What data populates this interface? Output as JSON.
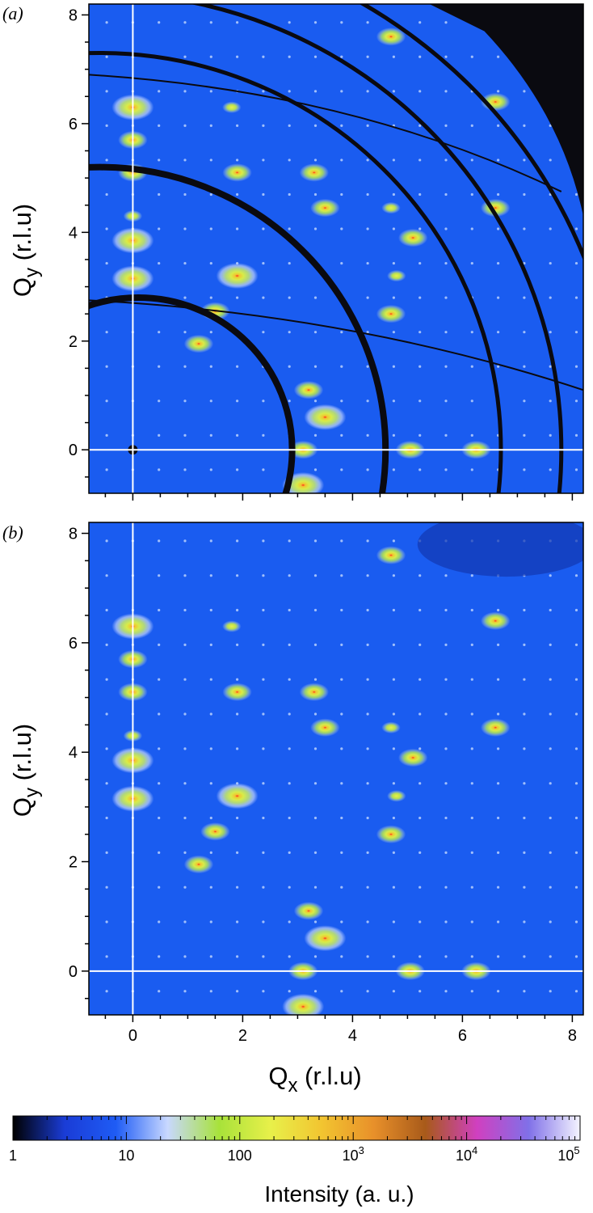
{
  "chart_data": [
    {
      "type": "heatmap",
      "panel_label": "(a)",
      "xlabel": "",
      "ylabel_main": "Q",
      "ylabel_sub": "y",
      "ylabel_unit": " (r.l.u)",
      "xlim": [
        -0.8,
        8.2
      ],
      "ylim": [
        -0.8,
        8.2
      ],
      "x_ticks": [
        0,
        2,
        4,
        6,
        8
      ],
      "y_ticks": [
        0,
        2,
        4,
        6,
        8
      ],
      "x_tick_labels": [
        "",
        "",
        "",
        "",
        ""
      ],
      "y_tick_labels": [
        "0",
        "2",
        "4",
        "6",
        "8"
      ],
      "background_color": "#1a5cf0",
      "mask_color": "#0a0a10",
      "guide_lines": {
        "x": 0,
        "y": 0,
        "color": "#ffffff"
      },
      "arc_radii": [
        2.8,
        5.2,
        7.3,
        8.4,
        9.5
      ],
      "peaks": [
        [
          0,
          3.15,
          3
        ],
        [
          0,
          3.85,
          3
        ],
        [
          0,
          6.3,
          3
        ],
        [
          0,
          5.7,
          2
        ],
        [
          0,
          5.1,
          2
        ],
        [
          0,
          4.3,
          1
        ],
        [
          1.9,
          3.2,
          3
        ],
        [
          1.5,
          2.55,
          2
        ],
        [
          1.2,
          1.95,
          2
        ],
        [
          3.5,
          0.6,
          3
        ],
        [
          3.2,
          1.1,
          2
        ],
        [
          3.1,
          0,
          2
        ],
        [
          3.1,
          -0.65,
          3
        ],
        [
          3.3,
          5.1,
          2
        ],
        [
          3.5,
          4.45,
          2
        ],
        [
          4.8,
          3.2,
          1
        ],
        [
          5.1,
          3.9,
          2
        ],
        [
          4.7,
          2.5,
          2
        ],
        [
          4.7,
          7.6,
          2
        ],
        [
          6.6,
          6.4,
          2
        ],
        [
          6.6,
          4.45,
          2
        ],
        [
          5.05,
          0,
          2
        ],
        [
          6.25,
          0,
          2
        ],
        [
          4.7,
          4.45,
          1
        ],
        [
          1.9,
          5.1,
          2
        ],
        [
          1.8,
          6.3,
          1
        ]
      ]
    },
    {
      "type": "heatmap",
      "panel_label": "(b)",
      "xlabel_main": "Q",
      "xlabel_sub": "x",
      "xlabel_unit": " (r.l.u)",
      "ylabel_main": "Q",
      "ylabel_sub": "y",
      "ylabel_unit": " (r.l.u)",
      "xlim": [
        -0.8,
        8.2
      ],
      "ylim": [
        -0.8,
        8.2
      ],
      "x_ticks": [
        0,
        2,
        4,
        6,
        8
      ],
      "y_ticks": [
        0,
        2,
        4,
        6,
        8
      ],
      "x_tick_labels": [
        "0",
        "2",
        "4",
        "6",
        "8"
      ],
      "y_tick_labels": [
        "0",
        "2",
        "4",
        "6",
        "8"
      ],
      "background_color": "#1a5cf0",
      "guide_lines": {
        "x": 0,
        "y": 0,
        "color": "#ffffff"
      },
      "peaks": [
        [
          0,
          3.15,
          3
        ],
        [
          0,
          3.85,
          3
        ],
        [
          0,
          6.3,
          3
        ],
        [
          0,
          5.7,
          2
        ],
        [
          0,
          5.1,
          2
        ],
        [
          0,
          4.3,
          1
        ],
        [
          1.9,
          3.2,
          3
        ],
        [
          1.5,
          2.55,
          2
        ],
        [
          1.2,
          1.95,
          2
        ],
        [
          3.5,
          0.6,
          3
        ],
        [
          3.2,
          1.1,
          2
        ],
        [
          3.1,
          0,
          2
        ],
        [
          3.1,
          -0.65,
          3
        ],
        [
          3.3,
          5.1,
          2
        ],
        [
          3.5,
          4.45,
          2
        ],
        [
          4.8,
          3.2,
          1
        ],
        [
          5.1,
          3.9,
          2
        ],
        [
          4.7,
          2.5,
          2
        ],
        [
          4.7,
          7.6,
          2
        ],
        [
          6.6,
          6.4,
          2
        ],
        [
          6.6,
          4.45,
          2
        ],
        [
          5.05,
          0,
          2
        ],
        [
          6.25,
          0,
          2
        ],
        [
          4.7,
          4.45,
          1
        ],
        [
          1.9,
          5.1,
          2
        ],
        [
          1.8,
          6.3,
          1
        ]
      ]
    },
    {
      "type": "colorbar",
      "scale": "log",
      "range": [
        1,
        100000
      ],
      "tick_labels": [
        "1",
        "10",
        "100",
        "10",
        "10",
        "10"
      ],
      "tick_label_exponents": [
        "",
        "",
        "",
        "3",
        "4",
        "5"
      ],
      "label": "Intensity (a. u.)",
      "stops": [
        "#000000",
        "#1a3cd6",
        "#1f5cf5",
        "#c8d8ff",
        "#a8e23a",
        "#e8f04a",
        "#f2c430",
        "#e8902a",
        "#a85a1a",
        "#d040c0",
        "#8070e8",
        "#f4f4ff"
      ]
    }
  ]
}
